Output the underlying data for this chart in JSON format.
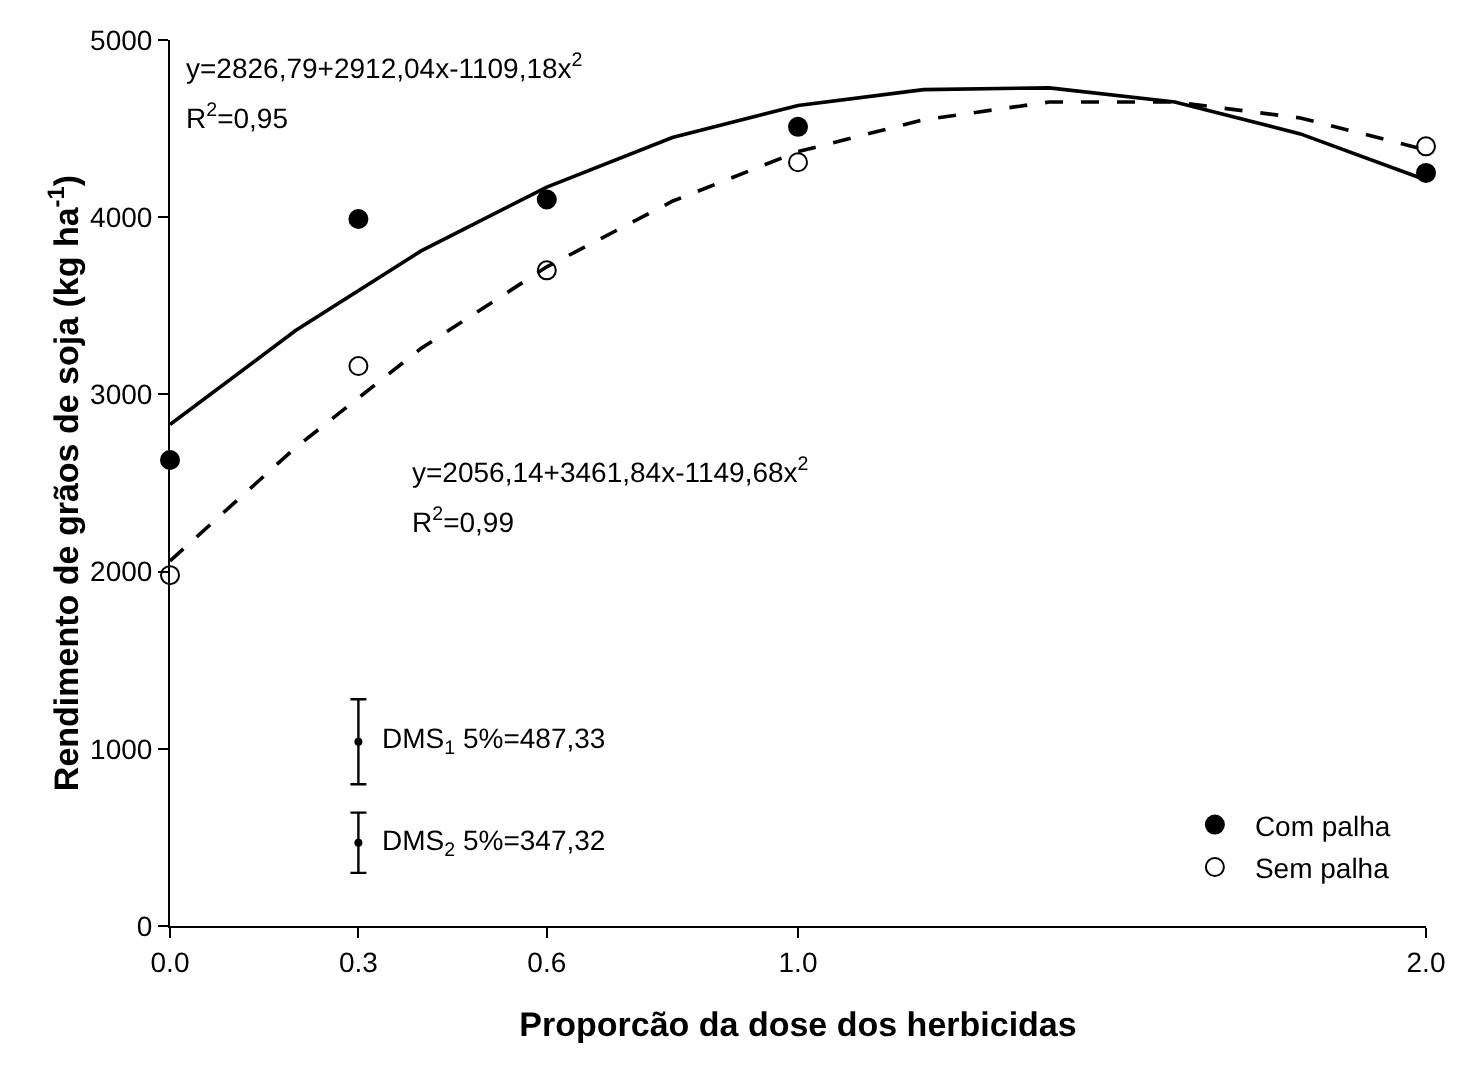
{
  "chart_data": {
    "type": "scatter",
    "xlabel": "Proporcão da dose dos herbicidas",
    "ylabel": "Rendimento de grãos de soja (kg ha$^{-1}$)",
    "xlim": [
      0,
      2
    ],
    "xticks": [
      {
        "value": 0,
        "label": "0.0"
      },
      0.3,
      0.6,
      {
        "value": 1,
        "label": "1.0"
      },
      {
        "value": 2,
        "label": "2.0"
      }
    ],
    "ylim": [
      0,
      5000
    ],
    "yticks": [
      0,
      1000,
      2000,
      3000,
      4000,
      5000
    ],
    "grid": false,
    "legend": "bottom right",
    "marker": "circle",
    "x": [
      0,
      0.3,
      0.6,
      1,
      2
    ],
    "series": [
      {
        "name": "Com palha",
        "color": "#000000",
        "values": [
          2630,
          3990,
          4100,
          4510,
          4250
        ]
      },
      {
        "name": "Sem palha",
        "color": "#ffffff",
        "values": [
          1980,
          3160,
          3700,
          4310,
          4400
        ]
      },
      {
        "type": "line",
        "color": "#000000",
        "line_style": "solid",
        "marker": "none",
        "x": [
          0,
          0.2,
          0.4,
          0.6,
          0.8,
          1,
          1.2,
          1.4,
          1.6,
          1.8,
          2
        ],
        "values": [
          2830,
          3360,
          3810,
          4170,
          4450,
          4630,
          4720,
          4730,
          4650,
          4470,
          4210
        ]
      },
      {
        "type": "line",
        "color": "#000000",
        "line_style": "dashed",
        "marker": "none",
        "x": [
          0,
          0.2,
          0.4,
          0.6,
          0.8,
          1,
          1.2,
          1.4,
          1.6,
          1.8,
          2
        ],
        "values": [
          2060,
          2700,
          3260,
          3720,
          4090,
          4370,
          4550,
          4650,
          4650,
          4560,
          4380
        ]
      },
      {
        "type": "scatter",
        "marker": "circle",
        "color": "#000000",
        "x": [
          0.3,
          0.3
        ],
        "values": [
          1040,
          470
        ],
        "errors": [
          240,
          170
        ]
      }
    ],
    "annotations": [
      "y=2826,79+2912,04x-1109,18x$^{2}$",
      "R$^{2}$=0,95",
      "y=2056,14+3461,84x-1149,68x$^{2}$",
      "R$^{2}$=0,99",
      "DMS$_{1}$ 5%=487,33",
      "DMS$_{2}$ 5%=347,32"
    ]
  }
}
